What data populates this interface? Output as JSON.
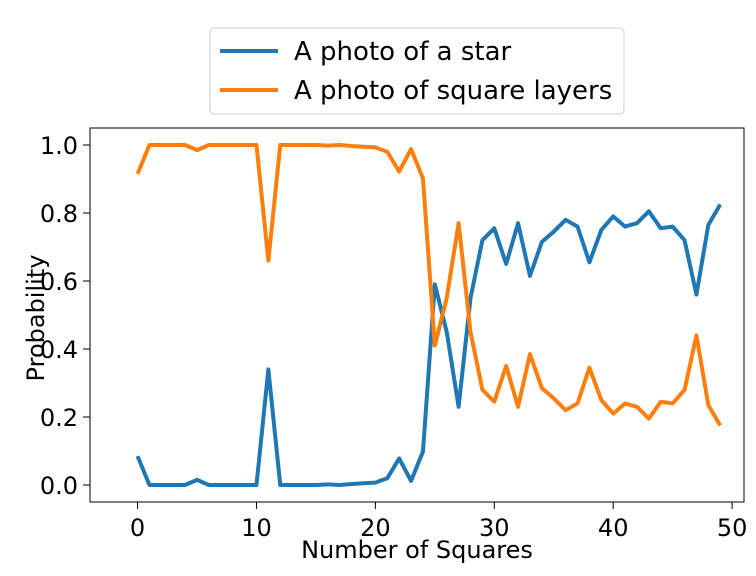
{
  "chart_data": {
    "type": "line",
    "title": "",
    "xlabel": "Number of Squares",
    "ylabel": "Probability",
    "xlim": [
      -4,
      51
    ],
    "ylim": [
      -0.05,
      1.05
    ],
    "x_ticks": [
      0,
      10,
      20,
      30,
      40,
      50
    ],
    "x_tick_labels": [
      "0",
      "10",
      "20",
      "30",
      "40",
      "50"
    ],
    "y_ticks": [
      0.0,
      0.2,
      0.4,
      0.6,
      0.8,
      1.0
    ],
    "y_tick_labels": [
      "0.0",
      "0.2",
      "0.4",
      "0.6",
      "0.8",
      "1.0"
    ],
    "grid": false,
    "legend_position": "above plot, centered",
    "x": [
      0,
      1,
      2,
      3,
      4,
      5,
      6,
      7,
      8,
      9,
      10,
      11,
      12,
      13,
      14,
      15,
      16,
      17,
      18,
      19,
      20,
      21,
      22,
      23,
      24,
      25,
      26,
      27,
      28,
      29,
      30,
      31,
      32,
      33,
      34,
      35,
      36,
      37,
      38,
      39,
      40,
      41,
      42,
      43,
      44,
      45,
      46,
      47,
      48,
      49
    ],
    "series": [
      {
        "name": "A photo of a star",
        "color": "#1f77b4",
        "values": [
          0.085,
          0.0,
          0.0,
          0.0,
          0.0,
          0.015,
          0.0,
          0.0,
          0.0,
          0.0,
          0.0,
          0.34,
          0.0,
          0.0,
          0.0,
          0.0,
          0.002,
          0.0,
          0.003,
          0.005,
          0.007,
          0.02,
          0.078,
          0.012,
          0.098,
          0.59,
          0.45,
          0.23,
          0.55,
          0.72,
          0.755,
          0.65,
          0.77,
          0.615,
          0.715,
          0.745,
          0.78,
          0.76,
          0.655,
          0.75,
          0.79,
          0.76,
          0.77,
          0.805,
          0.755,
          0.76,
          0.72,
          0.56,
          0.765,
          0.825
        ]
      },
      {
        "name": "A photo of square layers",
        "color": "#ff7f0e",
        "values": [
          0.915,
          1.0,
          1.0,
          1.0,
          1.0,
          0.985,
          1.0,
          1.0,
          1.0,
          1.0,
          1.0,
          0.66,
          1.0,
          1.0,
          1.0,
          1.0,
          0.998,
          1.0,
          0.997,
          0.995,
          0.993,
          0.98,
          0.922,
          0.988,
          0.902,
          0.41,
          0.55,
          0.77,
          0.45,
          0.28,
          0.245,
          0.35,
          0.23,
          0.385,
          0.285,
          0.255,
          0.22,
          0.24,
          0.345,
          0.25,
          0.21,
          0.24,
          0.23,
          0.195,
          0.245,
          0.24,
          0.28,
          0.44,
          0.235,
          0.175
        ]
      }
    ]
  }
}
